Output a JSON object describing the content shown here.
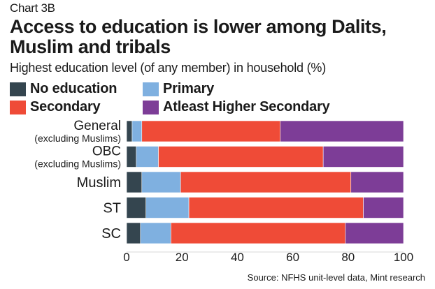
{
  "kicker": "Chart 3B",
  "title": "Access to education is lower among Dalits, Muslim and tribals",
  "subtitle": "Highest education level (of any member) in household (%)",
  "source": "Source: NFHS unit-level data, Mint research",
  "legend": [
    {
      "label": "No education",
      "color": "#34454f"
    },
    {
      "label": "Primary",
      "color": "#7fb0e0"
    },
    {
      "label": "Secondary",
      "color": "#ef4b37"
    },
    {
      "label": "Atleast Higher Secondary",
      "color": "#7d3d97"
    }
  ],
  "chart_data": {
    "type": "bar",
    "orientation": "horizontal",
    "stacked": true,
    "categories": [
      {
        "label": "General",
        "sublabel": "(excluding Muslims)"
      },
      {
        "label": "OBC",
        "sublabel": "(excluding Muslims)"
      },
      {
        "label": "Muslim",
        "sublabel": ""
      },
      {
        "label": "ST",
        "sublabel": ""
      },
      {
        "label": "SC",
        "sublabel": ""
      }
    ],
    "series": [
      {
        "name": "No education",
        "color": "#34454f",
        "values": [
          2,
          3.5,
          5.5,
          7,
          5
        ]
      },
      {
        "name": "Primary",
        "color": "#7fb0e0",
        "values": [
          3.5,
          8,
          14,
          15.5,
          11
        ]
      },
      {
        "name": "Secondary",
        "color": "#ef4b37",
        "values": [
          50,
          59.5,
          61.5,
          63,
          63
        ]
      },
      {
        "name": "Atleast Higher Secondary",
        "color": "#7d3d97",
        "values": [
          44.5,
          29,
          19,
          14.5,
          21
        ]
      }
    ],
    "xlim": [
      0,
      100
    ],
    "xticks": [
      0,
      20,
      40,
      60,
      80,
      100
    ],
    "grid": false
  }
}
